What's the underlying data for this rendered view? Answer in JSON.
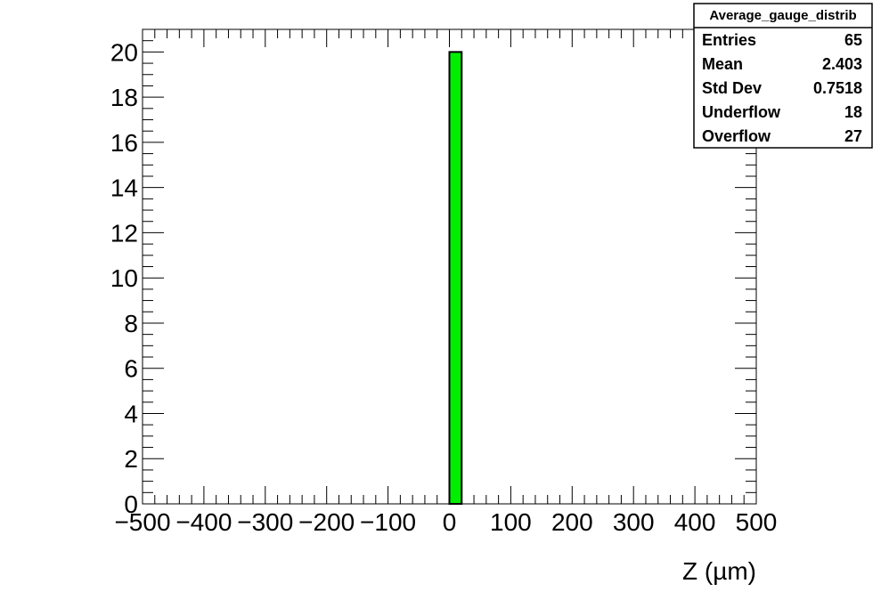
{
  "chart_data": {
    "type": "bar",
    "title": "",
    "xlabel": "Z (µm)",
    "ylabel": "",
    "xlim": [
      -500,
      500
    ],
    "ylim": [
      0,
      21
    ],
    "x_ticks": [
      -500,
      -400,
      -300,
      -200,
      -100,
      0,
      100,
      200,
      300,
      400,
      500
    ],
    "x_tick_labels": [
      "−500",
      "−400",
      "−300",
      "−200",
      "−100",
      "0",
      "100",
      "200",
      "300",
      "400",
      "500"
    ],
    "y_ticks": [
      0,
      2,
      4,
      6,
      8,
      10,
      12,
      14,
      16,
      18,
      20
    ],
    "y_tick_labels": [
      "0",
      "2",
      "4",
      "6",
      "8",
      "10",
      "12",
      "14",
      "16",
      "18",
      "20"
    ],
    "bin_width": 20,
    "bins": [
      {
        "x_low": 0,
        "x_high": 20,
        "value": 20
      }
    ],
    "colors": {
      "fill": "#00ee00",
      "line": "#000000"
    },
    "grid": false,
    "legend": "none",
    "stats_box": {
      "title": "Average_gauge_distrib",
      "rows": [
        {
          "label": "Entries",
          "value": "65"
        },
        {
          "label": "Mean",
          "value": "2.403"
        },
        {
          "label": "Std Dev",
          "value": "0.7518"
        },
        {
          "label": "Underflow",
          "value": "18"
        },
        {
          "label": "Overflow",
          "value": "27"
        }
      ]
    }
  }
}
